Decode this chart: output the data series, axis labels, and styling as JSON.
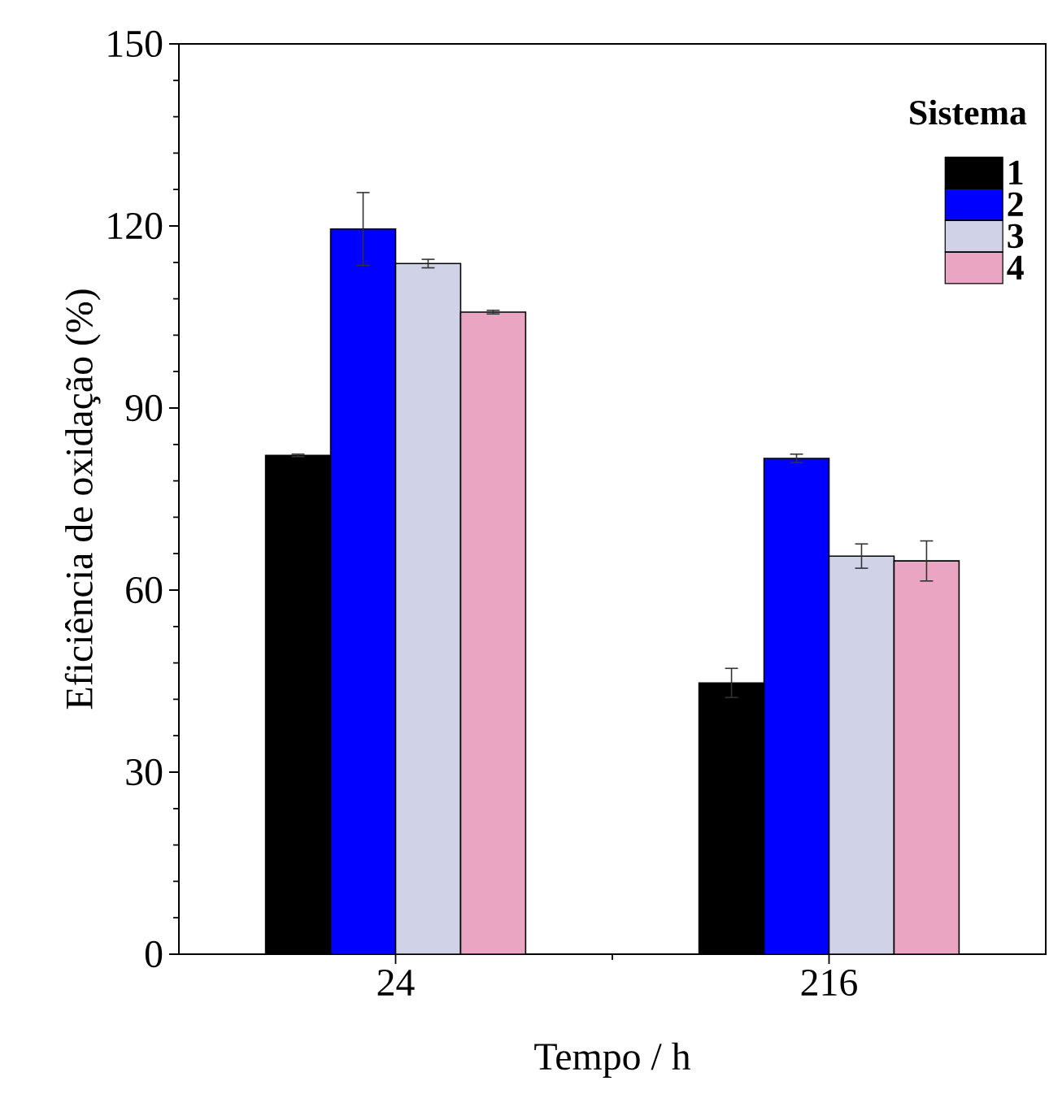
{
  "chart_data": {
    "type": "bar",
    "xlabel": "Tempo / h",
    "ylabel": "Eficiência de oxidação (%)",
    "legend_title": "Sistema",
    "categories": [
      "24",
      "216"
    ],
    "series": [
      {
        "name": "1",
        "color": "#000000",
        "values": [
          82.2,
          44.7
        ],
        "errors": [
          0.2,
          2.4
        ]
      },
      {
        "name": "2",
        "color": "#0000ff",
        "values": [
          119.5,
          81.7
        ],
        "errors": [
          6,
          0.7
        ]
      },
      {
        "name": "3",
        "color": "#d0d3e8",
        "values": [
          113.8,
          65.6
        ],
        "errors": [
          0.7,
          2
        ]
      },
      {
        "name": "4",
        "color": "#e9a5c1",
        "values": [
          105.8,
          64.8
        ],
        "errors": [
          0.3,
          3.3
        ]
      }
    ],
    "ylim": [
      0,
      150
    ],
    "yticks": [
      0,
      30,
      60,
      90,
      120,
      150
    ],
    "legend": "top right"
  }
}
